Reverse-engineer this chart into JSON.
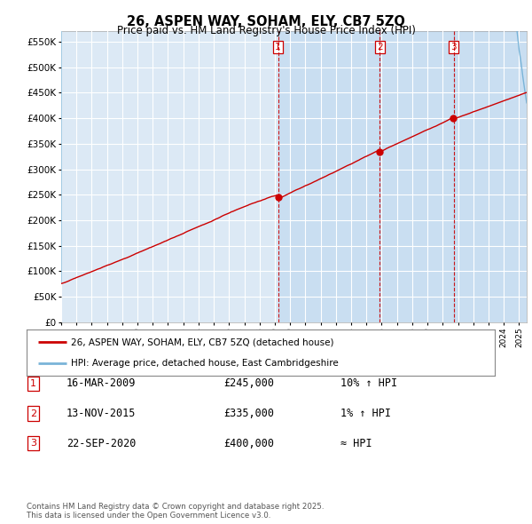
{
  "title": "26, ASPEN WAY, SOHAM, ELY, CB7 5ZQ",
  "subtitle": "Price paid vs. HM Land Registry's House Price Index (HPI)",
  "ylim": [
    0,
    570000
  ],
  "yticks": [
    0,
    50000,
    100000,
    150000,
    200000,
    250000,
    300000,
    350000,
    400000,
    450000,
    500000,
    550000
  ],
  "ytick_labels": [
    "£0",
    "£50K",
    "£100K",
    "£150K",
    "£200K",
    "£250K",
    "£300K",
    "£350K",
    "£400K",
    "£450K",
    "£500K",
    "£550K"
  ],
  "background_color": "#dce9f5",
  "grid_color": "#ffffff",
  "red_line_color": "#cc0000",
  "blue_line_color": "#7ab4d8",
  "shade_color": "#b8d4ee",
  "purchases": [
    {
      "date_num": 2009.21,
      "price": 245000,
      "label": "1"
    },
    {
      "date_num": 2015.87,
      "price": 335000,
      "label": "2"
    },
    {
      "date_num": 2020.73,
      "price": 400000,
      "label": "3"
    }
  ],
  "legend_house": "26, ASPEN WAY, SOHAM, ELY, CB7 5ZQ (detached house)",
  "legend_hpi": "HPI: Average price, detached house, East Cambridgeshire",
  "table_rows": [
    {
      "num": "1",
      "date": "16-MAR-2009",
      "price": "£245,000",
      "change": "10% ↑ HPI"
    },
    {
      "num": "2",
      "date": "13-NOV-2015",
      "price": "£335,000",
      "change": "1% ↑ HPI"
    },
    {
      "num": "3",
      "date": "22-SEP-2020",
      "price": "£400,000",
      "change": "≈ HPI"
    }
  ],
  "footer": "Contains HM Land Registry data © Crown copyright and database right 2025.\nThis data is licensed under the Open Government Licence v3.0."
}
